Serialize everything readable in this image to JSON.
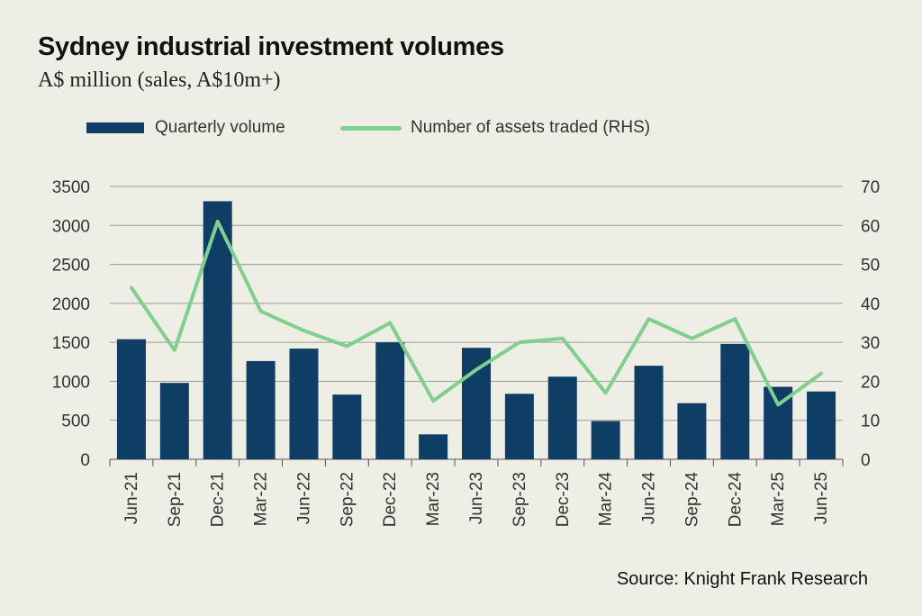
{
  "title": "Sydney industrial investment volumes",
  "subtitle": "A$ million (sales, A$10m+)",
  "source": "Source: Knight Frank Research",
  "colors": {
    "bar": "#0e3e66",
    "line": "#7fcf8d",
    "grid": "#9a9a9a",
    "background": "#efeee4"
  },
  "chart_data": {
    "type": "bar",
    "categories": [
      "Jun-21",
      "Sep-21",
      "Dec-21",
      "Mar-22",
      "Jun-22",
      "Sep-22",
      "Dec-22",
      "Mar-23",
      "Jun-23",
      "Sep-23",
      "Dec-23",
      "Mar-24",
      "Jun-24",
      "Sep-24",
      "Dec-24",
      "Mar-25",
      "Jun-25"
    ],
    "series": [
      {
        "name": "Quarterly volume",
        "type": "bar",
        "axis": "left",
        "values": [
          1540,
          980,
          3310,
          1260,
          1420,
          830,
          1500,
          320,
          1430,
          840,
          1060,
          490,
          1200,
          720,
          1480,
          930,
          870
        ]
      },
      {
        "name": "Number of assets traded (RHS)",
        "type": "line",
        "axis": "right",
        "values": [
          44,
          28,
          61,
          38,
          33,
          29,
          35,
          15,
          23,
          30,
          31,
          17,
          36,
          31,
          36,
          14,
          22
        ]
      }
    ],
    "yticks_left": [
      "0",
      "500",
      "1000",
      "1500",
      "2000",
      "2500",
      "3000",
      "3500"
    ],
    "yticks_right": [
      "0",
      "10",
      "20",
      "30",
      "40",
      "50",
      "60",
      "70"
    ],
    "ylim_left": [
      0,
      3500
    ],
    "ylim_right": [
      0,
      70
    ],
    "grid": true,
    "legend_position": "top"
  }
}
